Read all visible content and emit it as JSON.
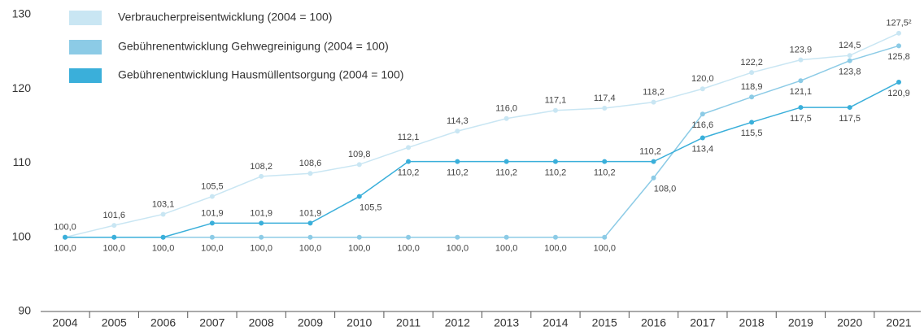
{
  "chart_data": {
    "type": "line",
    "categories": [
      "2004",
      "2005",
      "2006",
      "2007",
      "2008",
      "2009",
      "2010",
      "2011",
      "2012",
      "2013",
      "2014",
      "2015",
      "2016",
      "2017",
      "2018",
      "2019",
      "2020",
      "2021"
    ],
    "ylim": [
      90,
      130
    ],
    "yticks": [
      90,
      100,
      110,
      120,
      130
    ],
    "grid": false,
    "legend": "top-left",
    "series": [
      {
        "name": "Verbraucherpreisentwicklung (2004 = 100)",
        "color": "#c9e6f3",
        "values": [
          100.0,
          101.6,
          103.1,
          105.5,
          108.2,
          108.6,
          109.8,
          112.1,
          114.3,
          116.0,
          117.1,
          117.4,
          118.2,
          120.0,
          122.2,
          123.9,
          124.5,
          127.5
        ],
        "value_labels": [
          "100,0",
          "101,6",
          "103,1",
          "105,5",
          "108,2",
          "108,6",
          "109,8",
          "112,1",
          "114,3",
          "116,0",
          "117,1",
          "117,4",
          "118,2",
          "120,0",
          "122,2",
          "123,9",
          "124,5",
          "127,5²"
        ]
      },
      {
        "name": "Gebührenentwicklung Gehwegreinigung (2004 = 100)",
        "color": "#8ccbe6",
        "values": [
          100.0,
          100.0,
          100.0,
          100.0,
          100.0,
          100.0,
          100.0,
          100.0,
          100.0,
          100.0,
          100.0,
          100.0,
          108.0,
          116.6,
          118.9,
          121.1,
          123.8,
          125.8
        ],
        "value_labels": [
          "100,0",
          "100,0",
          "100,0",
          "100,0",
          "100,0",
          "100,0",
          "100,0",
          "100,0",
          "100,0",
          "100,0",
          "100,0",
          "100,0",
          "108,0",
          "116,6",
          "118,9",
          "121,1",
          "123,8",
          "125,8"
        ]
      },
      {
        "name": "Gebührenentwicklung Hausmüllentsorgung (2004 = 100)",
        "color": "#3aafda",
        "values": [
          100.0,
          100.0,
          100.0,
          101.9,
          101.9,
          101.9,
          105.5,
          110.2,
          110.2,
          110.2,
          110.2,
          110.2,
          110.2,
          113.4,
          115.5,
          117.5,
          117.5,
          120.9
        ],
        "value_labels": [
          null,
          null,
          null,
          "101,9",
          "101,9",
          "101,9",
          "105,5",
          "110,2",
          "110,2",
          "110,2",
          "110,2",
          "110,2",
          "110,2",
          "113,4",
          "115,5",
          "117,5",
          "117,5",
          "120,9"
        ]
      }
    ]
  }
}
